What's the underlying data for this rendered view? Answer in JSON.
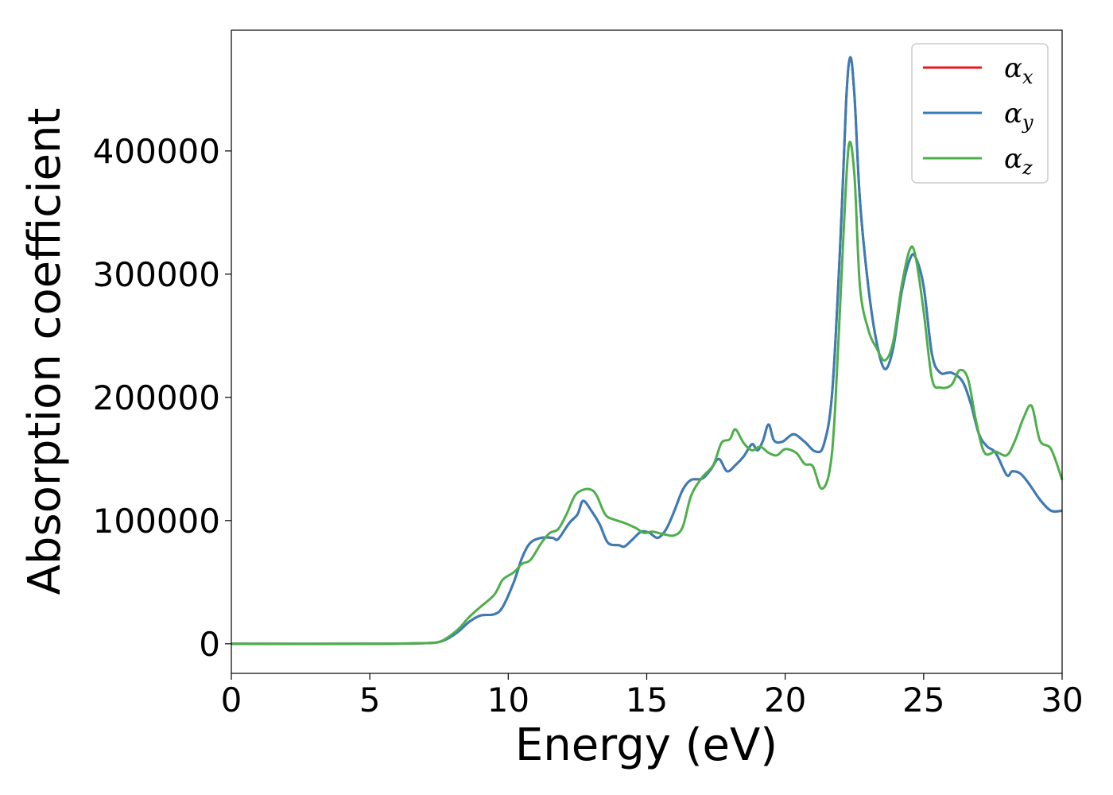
{
  "chart_data": {
    "type": "line",
    "title": "",
    "xlabel": "Energy (eV)",
    "ylabel": "Absorption coefficient",
    "xlim": [
      0,
      30
    ],
    "ylim": [
      -24000,
      498000
    ],
    "xticks": [
      0,
      5,
      10,
      15,
      20,
      25,
      30
    ],
    "xtick_labels": [
      "0",
      "5",
      "10",
      "15",
      "20",
      "25",
      "30"
    ],
    "yticks": [
      0,
      100000,
      200000,
      300000,
      400000
    ],
    "ytick_labels": [
      "0",
      "100000",
      "200000",
      "300000",
      "400000"
    ],
    "grid": false,
    "legend_position": "top-right",
    "series": [
      {
        "name": "α",
        "subscript": "x",
        "color": "#e41a1c",
        "points": [
          [
            0,
            0
          ],
          [
            5,
            0
          ],
          [
            7,
            500
          ],
          [
            7.5,
            1500
          ],
          [
            7.8,
            4000
          ],
          [
            8.2,
            10000
          ],
          [
            8.6,
            18000
          ],
          [
            9,
            23000
          ],
          [
            9.5,
            24000
          ],
          [
            9.8,
            30000
          ],
          [
            10.2,
            50000
          ],
          [
            10.5,
            70000
          ],
          [
            10.8,
            82000
          ],
          [
            11.2,
            86000
          ],
          [
            11.6,
            86000
          ],
          [
            11.8,
            85000
          ],
          [
            12.2,
            98000
          ],
          [
            12.5,
            105000
          ],
          [
            12.7,
            116000
          ],
          [
            13,
            108000
          ],
          [
            13.3,
            97000
          ],
          [
            13.6,
            82000
          ],
          [
            14,
            80000
          ],
          [
            14.2,
            79000
          ],
          [
            14.5,
            85000
          ],
          [
            14.8,
            91000
          ],
          [
            15.1,
            90000
          ],
          [
            15.4,
            86000
          ],
          [
            15.7,
            93000
          ],
          [
            16,
            108000
          ],
          [
            16.3,
            125000
          ],
          [
            16.6,
            133000
          ],
          [
            17,
            134000
          ],
          [
            17.3,
            141000
          ],
          [
            17.6,
            150000
          ],
          [
            17.9,
            140000
          ],
          [
            18.2,
            145000
          ],
          [
            18.5,
            152000
          ],
          [
            18.8,
            162000
          ],
          [
            19,
            157000
          ],
          [
            19.2,
            165000
          ],
          [
            19.4,
            178000
          ],
          [
            19.6,
            165000
          ],
          [
            19.9,
            164000
          ],
          [
            20.3,
            170000
          ],
          [
            20.7,
            164000
          ],
          [
            21.1,
            156000
          ],
          [
            21.4,
            162000
          ],
          [
            21.7,
            205000
          ],
          [
            22,
            330000
          ],
          [
            22.2,
            440000
          ],
          [
            22.35,
            476000
          ],
          [
            22.5,
            445000
          ],
          [
            22.7,
            360000
          ],
          [
            23,
            290000
          ],
          [
            23.3,
            245000
          ],
          [
            23.6,
            223000
          ],
          [
            23.9,
            240000
          ],
          [
            24.2,
            285000
          ],
          [
            24.5,
            312000
          ],
          [
            24.7,
            314000
          ],
          [
            25,
            290000
          ],
          [
            25.3,
            235000
          ],
          [
            25.6,
            220000
          ],
          [
            26,
            220000
          ],
          [
            26.4,
            213000
          ],
          [
            26.7,
            195000
          ],
          [
            27,
            170000
          ],
          [
            27.3,
            160000
          ],
          [
            27.6,
            155000
          ],
          [
            28,
            137000
          ],
          [
            28.2,
            140000
          ],
          [
            28.5,
            138000
          ],
          [
            28.8,
            130000
          ],
          [
            29.2,
            117000
          ],
          [
            29.6,
            108000
          ],
          [
            30,
            108000
          ]
        ]
      },
      {
        "name": "α",
        "subscript": "y",
        "color": "#377eb8",
        "points": [
          [
            0,
            0
          ],
          [
            5,
            0
          ],
          [
            7,
            500
          ],
          [
            7.5,
            1500
          ],
          [
            7.8,
            4000
          ],
          [
            8.2,
            10000
          ],
          [
            8.6,
            18000
          ],
          [
            9,
            23000
          ],
          [
            9.5,
            24000
          ],
          [
            9.8,
            30000
          ],
          [
            10.2,
            50000
          ],
          [
            10.5,
            70000
          ],
          [
            10.8,
            82000
          ],
          [
            11.2,
            86000
          ],
          [
            11.6,
            86000
          ],
          [
            11.8,
            85000
          ],
          [
            12.2,
            98000
          ],
          [
            12.5,
            105000
          ],
          [
            12.7,
            116000
          ],
          [
            13,
            108000
          ],
          [
            13.3,
            97000
          ],
          [
            13.6,
            82000
          ],
          [
            14,
            80000
          ],
          [
            14.2,
            79000
          ],
          [
            14.5,
            85000
          ],
          [
            14.8,
            91000
          ],
          [
            15.1,
            90000
          ],
          [
            15.4,
            86000
          ],
          [
            15.7,
            93000
          ],
          [
            16,
            108000
          ],
          [
            16.3,
            125000
          ],
          [
            16.6,
            133000
          ],
          [
            17,
            134000
          ],
          [
            17.3,
            141000
          ],
          [
            17.6,
            150000
          ],
          [
            17.9,
            140000
          ],
          [
            18.2,
            145000
          ],
          [
            18.5,
            152000
          ],
          [
            18.8,
            162000
          ],
          [
            19,
            157000
          ],
          [
            19.2,
            165000
          ],
          [
            19.4,
            178000
          ],
          [
            19.6,
            165000
          ],
          [
            19.9,
            164000
          ],
          [
            20.3,
            170000
          ],
          [
            20.7,
            164000
          ],
          [
            21.1,
            156000
          ],
          [
            21.4,
            162000
          ],
          [
            21.7,
            205000
          ],
          [
            22,
            330000
          ],
          [
            22.2,
            440000
          ],
          [
            22.35,
            476000
          ],
          [
            22.5,
            445000
          ],
          [
            22.7,
            360000
          ],
          [
            23,
            290000
          ],
          [
            23.3,
            245000
          ],
          [
            23.6,
            223000
          ],
          [
            23.9,
            240000
          ],
          [
            24.2,
            285000
          ],
          [
            24.5,
            312000
          ],
          [
            24.7,
            314000
          ],
          [
            25,
            290000
          ],
          [
            25.3,
            235000
          ],
          [
            25.6,
            220000
          ],
          [
            26,
            220000
          ],
          [
            26.4,
            213000
          ],
          [
            26.7,
            195000
          ],
          [
            27,
            170000
          ],
          [
            27.3,
            160000
          ],
          [
            27.6,
            155000
          ],
          [
            28,
            137000
          ],
          [
            28.2,
            140000
          ],
          [
            28.5,
            138000
          ],
          [
            28.8,
            130000
          ],
          [
            29.2,
            117000
          ],
          [
            29.6,
            108000
          ],
          [
            30,
            108000
          ]
        ]
      },
      {
        "name": "α",
        "subscript": "z",
        "color": "#4daf4a",
        "points": [
          [
            0,
            0
          ],
          [
            5,
            0
          ],
          [
            7,
            500
          ],
          [
            7.5,
            1500
          ],
          [
            7.8,
            5000
          ],
          [
            8.2,
            12000
          ],
          [
            8.6,
            22000
          ],
          [
            9,
            30000
          ],
          [
            9.5,
            40000
          ],
          [
            9.8,
            52000
          ],
          [
            10.2,
            58000
          ],
          [
            10.5,
            65000
          ],
          [
            10.8,
            68000
          ],
          [
            11.2,
            82000
          ],
          [
            11.5,
            90000
          ],
          [
            11.8,
            93000
          ],
          [
            12.1,
            105000
          ],
          [
            12.4,
            120000
          ],
          [
            12.7,
            125000
          ],
          [
            13,
            125000
          ],
          [
            13.2,
            120000
          ],
          [
            13.5,
            105000
          ],
          [
            13.8,
            101000
          ],
          [
            14.2,
            98000
          ],
          [
            14.6,
            94000
          ],
          [
            14.9,
            90000
          ],
          [
            15.2,
            91000
          ],
          [
            15.6,
            89000
          ],
          [
            16,
            88000
          ],
          [
            16.3,
            95000
          ],
          [
            16.6,
            120000
          ],
          [
            17,
            135000
          ],
          [
            17.4,
            145000
          ],
          [
            17.7,
            163000
          ],
          [
            18,
            166000
          ],
          [
            18.2,
            174000
          ],
          [
            18.5,
            163000
          ],
          [
            18.8,
            157000
          ],
          [
            19.1,
            160000
          ],
          [
            19.4,
            155000
          ],
          [
            19.7,
            153000
          ],
          [
            20,
            158000
          ],
          [
            20.4,
            155000
          ],
          [
            20.7,
            146000
          ],
          [
            21,
            144000
          ],
          [
            21.3,
            126000
          ],
          [
            21.6,
            140000
          ],
          [
            21.8,
            190000
          ],
          [
            22.1,
            330000
          ],
          [
            22.3,
            405000
          ],
          [
            22.5,
            380000
          ],
          [
            22.7,
            290000
          ],
          [
            23,
            255000
          ],
          [
            23.3,
            240000
          ],
          [
            23.6,
            230000
          ],
          [
            23.9,
            245000
          ],
          [
            24.2,
            290000
          ],
          [
            24.5,
            320000
          ],
          [
            24.7,
            315000
          ],
          [
            25,
            270000
          ],
          [
            25.3,
            215000
          ],
          [
            25.6,
            208000
          ],
          [
            26,
            210000
          ],
          [
            26.3,
            222000
          ],
          [
            26.6,
            215000
          ],
          [
            26.9,
            180000
          ],
          [
            27.2,
            155000
          ],
          [
            27.6,
            156000
          ],
          [
            28,
            153000
          ],
          [
            28.3,
            165000
          ],
          [
            28.6,
            183000
          ],
          [
            28.9,
            193000
          ],
          [
            29.2,
            165000
          ],
          [
            29.6,
            158000
          ],
          [
            30,
            133000
          ]
        ]
      }
    ]
  }
}
